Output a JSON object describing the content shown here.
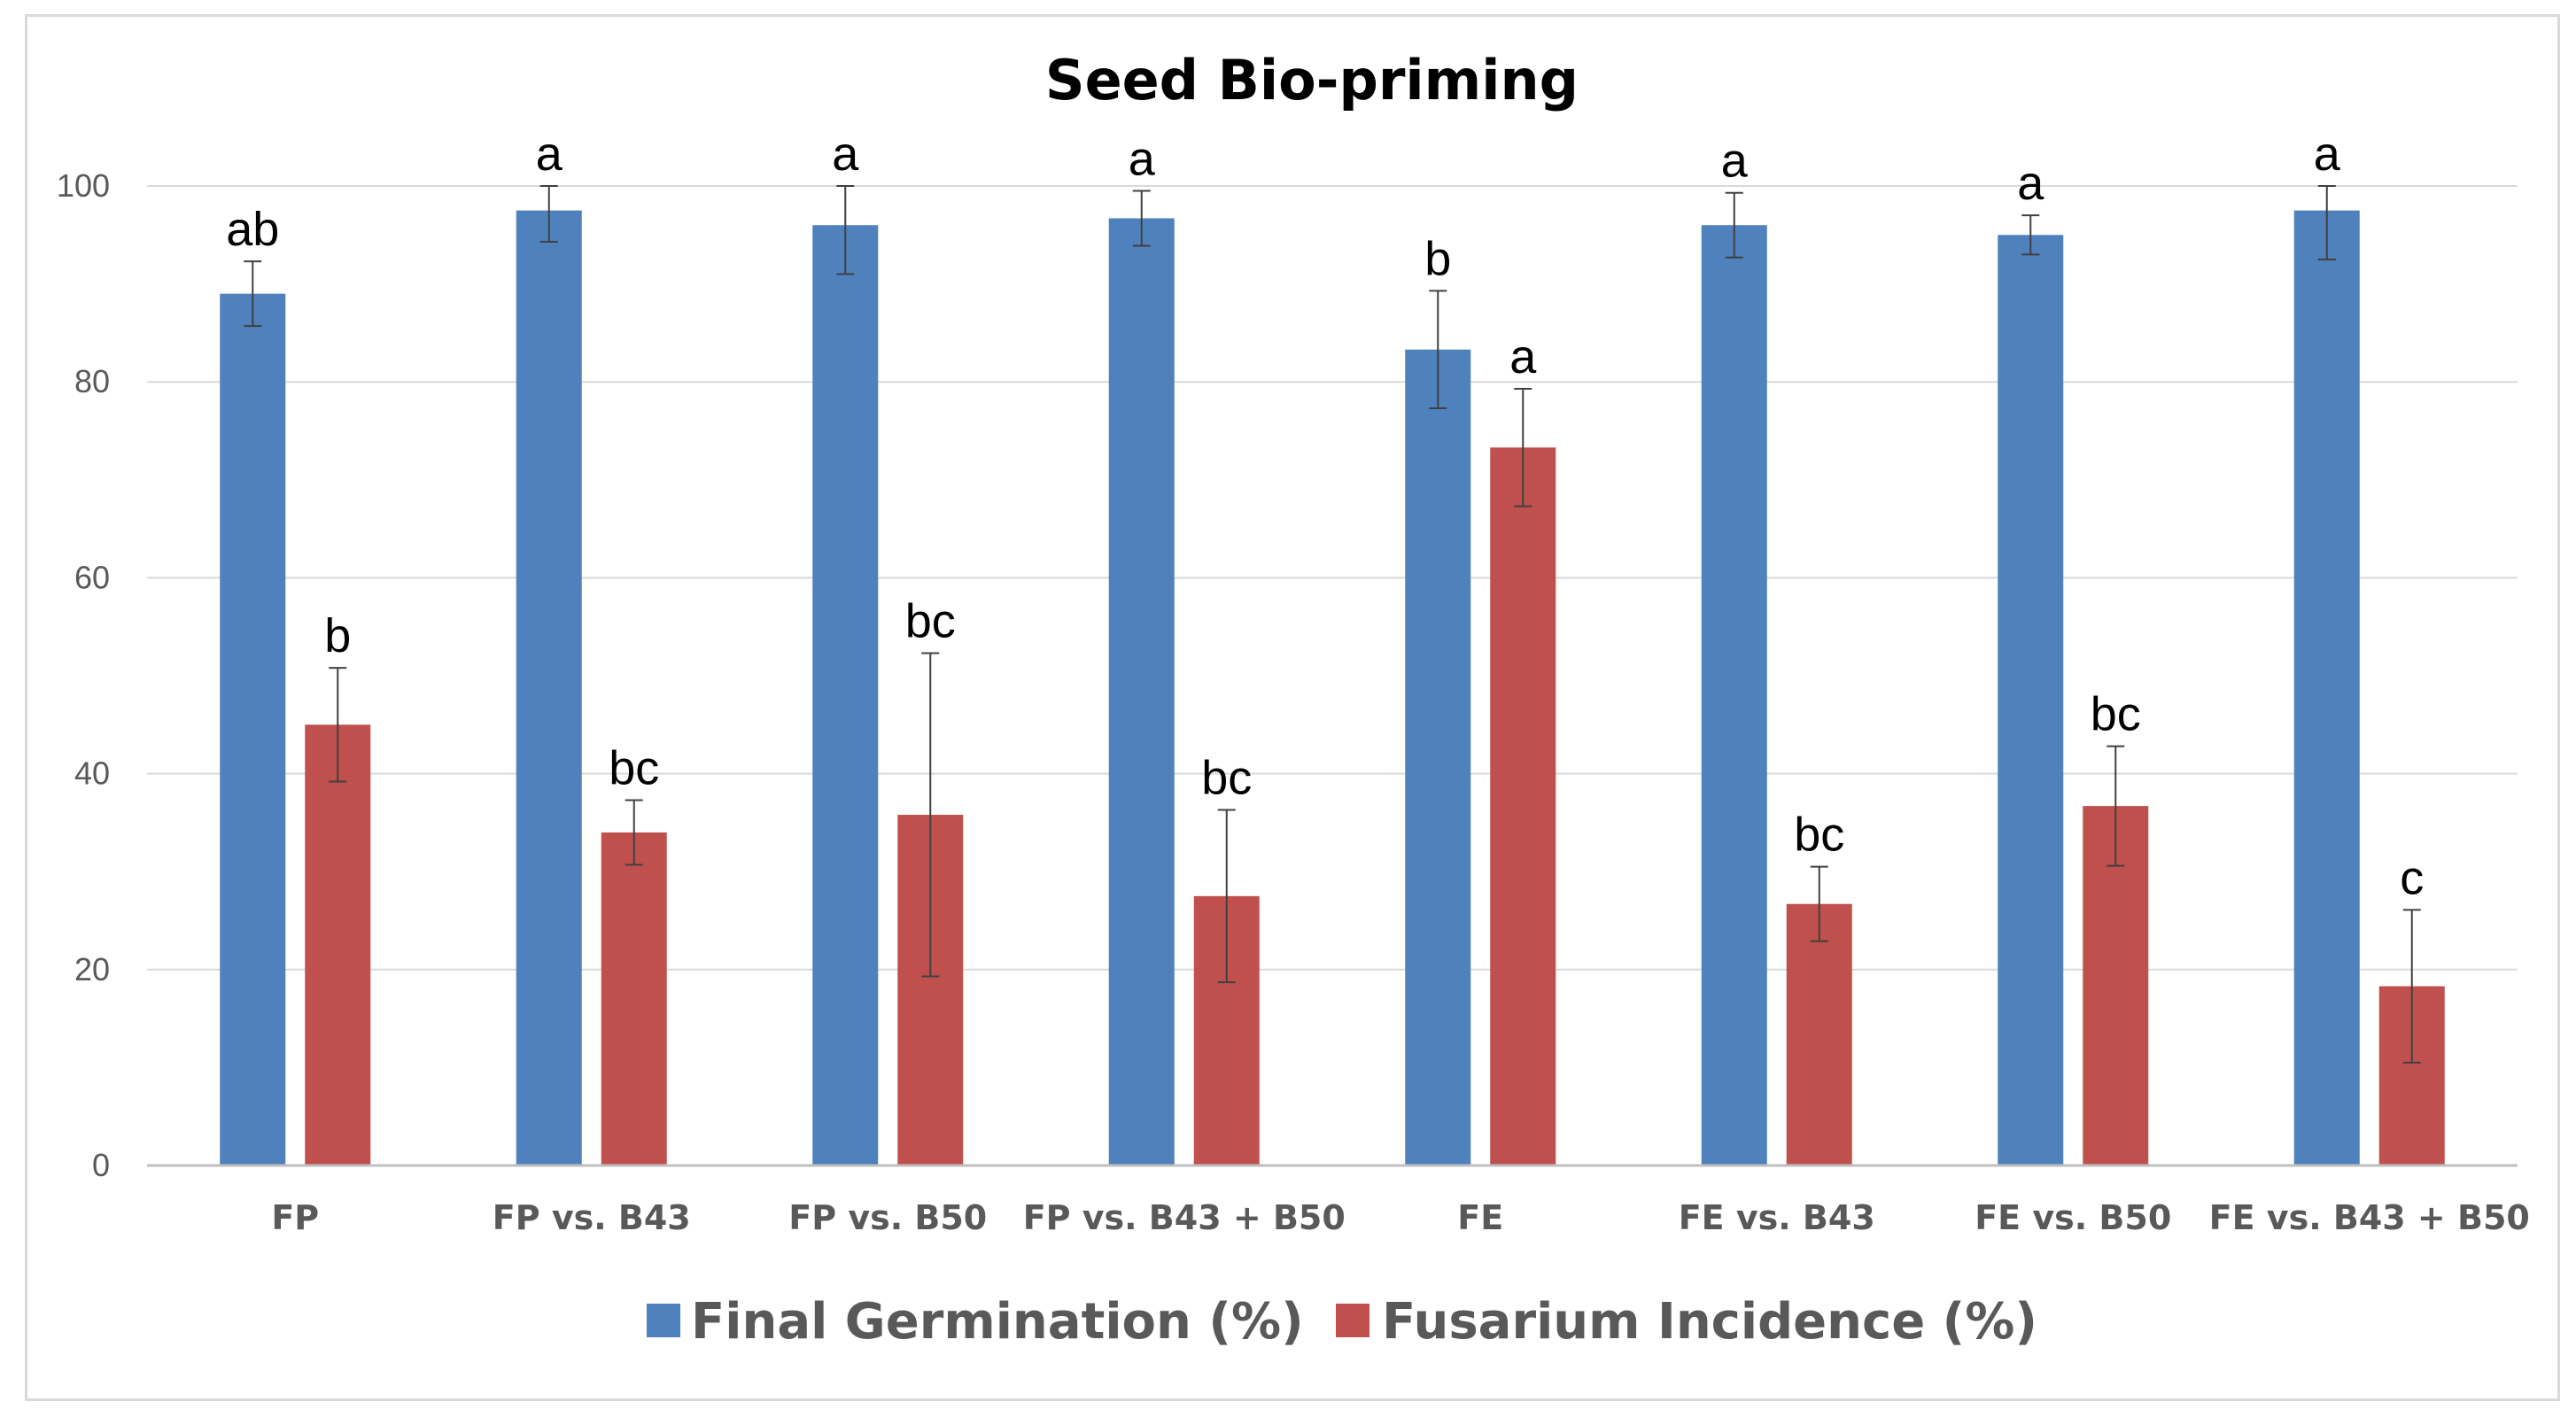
{
  "chart_data": {
    "type": "bar",
    "title": "Seed Bio-priming",
    "xlabel": "",
    "ylabel": "",
    "ylim": [
      0,
      100
    ],
    "yticks": [
      "0",
      "20",
      "40",
      "60",
      "80",
      "100"
    ],
    "grid": true,
    "legend_position": "bottom",
    "categories": [
      "FP",
      "FP vs. B43",
      "FP vs. B50",
      "FP vs. B43 + B50",
      "FE",
      "FE vs. B43",
      "FE vs. B50",
      "FE vs. B43 + B50"
    ],
    "series": [
      {
        "name": "Final Germination (%)",
        "color": "#4f81bd",
        "values": [
          89,
          97.5,
          96,
          96.7,
          83.3,
          96,
          95,
          97.5
        ],
        "errors": [
          3.3,
          3.2,
          5,
          2.8,
          6,
          3.3,
          2,
          5
        ],
        "labels": [
          "ab",
          "a",
          "a",
          "a",
          "b",
          "a",
          "a",
          "a"
        ]
      },
      {
        "name": "Fusarium Incidence (%)",
        "color": "#c0504d",
        "values": [
          45,
          34,
          35.8,
          27.5,
          73.3,
          26.7,
          36.7,
          18.3
        ],
        "errors": [
          5.8,
          3.3,
          16.5,
          8.8,
          6,
          3.8,
          6.1,
          7.8
        ],
        "labels": [
          "b",
          "bc",
          "bc",
          "bc",
          "a",
          "bc",
          "bc",
          "c"
        ]
      }
    ]
  }
}
